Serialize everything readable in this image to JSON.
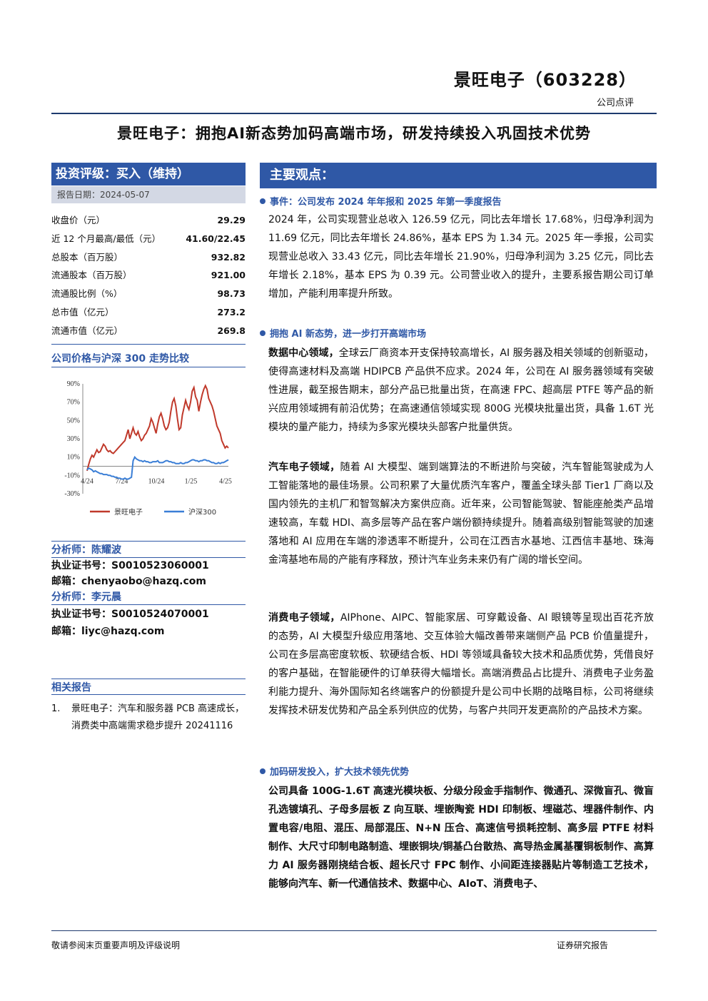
{
  "header": {
    "company_code": "景旺电子（603228）",
    "report_type": "公司点评",
    "headline": "景旺电子：拥抱AI新态势加码高端市场，研发持续投入巩固技术优势"
  },
  "sidebar": {
    "rating": "投资评级：买入（维持）",
    "report_date": "报告日期：2024-05-07",
    "stock_rows": [
      {
        "label": "收盘价（元）",
        "value": "29.29"
      },
      {
        "label": "近 12 个月最高/最低（元）",
        "value": "41.60/22.45"
      },
      {
        "label": "总股本（百万股）",
        "value": "932.82"
      },
      {
        "label": "流通股本（百万股）",
        "value": "921.00"
      },
      {
        "label": "流通股比例（%）",
        "value": "98.73"
      },
      {
        "label": "总市值（亿元）",
        "value": "273.2"
      },
      {
        "label": "流通市值（亿元）",
        "value": "269.8"
      }
    ],
    "chart_title": "公司价格与沪深 300 走势比较",
    "analysts": [
      {
        "title": "分析师：陈耀波",
        "cert": "执业证书号：S0010523060001",
        "email": "邮箱：chenyaobo@hazq.com"
      },
      {
        "title": "分析师：李元晨",
        "cert": "执业证书号：S0010524070001",
        "email": "邮箱：liyc@hazq.com"
      }
    ],
    "related_title": "相关报告",
    "related": [
      {
        "num": "1.",
        "text": "景旺电子：汽车和服务器 PCB 高速成长，消费类中高端需求稳步提升 20241116"
      }
    ]
  },
  "chart_data": {
    "type": "line",
    "y_ticks": [
      "90%",
      "70%",
      "50%",
      "30%",
      "10%",
      "-10%",
      "-30%"
    ],
    "y_values": [
      90,
      70,
      50,
      30,
      10,
      -10,
      -30
    ],
    "ylim": [
      -30,
      90
    ],
    "x_ticks": [
      "4/24",
      "7/24",
      "10/24",
      "1/25",
      "4/25"
    ],
    "grid": false,
    "legend_position": "bottom",
    "series": [
      {
        "name": "景旺电子",
        "color": "#c0392b",
        "values": [
          -5,
          2,
          8,
          12,
          10,
          14,
          18,
          15,
          16,
          20,
          24,
          22,
          18,
          16,
          17,
          15,
          14,
          16,
          18,
          20,
          22,
          24,
          26,
          28,
          34,
          40,
          30,
          36,
          42,
          36,
          34,
          38,
          32,
          28,
          30,
          34,
          36,
          40,
          44,
          52,
          48,
          42,
          36,
          46,
          54,
          58,
          52,
          44,
          40,
          42,
          48,
          60,
          70,
          74,
          66,
          52,
          40,
          42,
          56,
          64,
          72,
          66,
          62,
          70,
          82,
          86,
          76,
          72,
          60,
          70,
          78,
          84,
          88,
          84,
          74,
          70,
          66,
          60,
          52,
          44,
          40,
          36,
          28,
          24,
          20,
          22,
          20
        ]
      },
      {
        "name": "沪深300",
        "color": "#3a7ed6",
        "values": [
          -4,
          -2,
          -3,
          -4,
          -6,
          -5,
          -6,
          -7,
          -8,
          -8,
          -9,
          -9,
          -9,
          -10,
          -10,
          -11,
          -11,
          -12,
          -12,
          -13,
          -13,
          -14,
          -14,
          -13,
          -14,
          -14,
          -13,
          -12,
          6,
          10,
          8,
          7,
          6,
          6,
          5,
          6,
          5,
          5,
          4,
          4,
          5,
          5,
          5,
          6,
          4,
          4,
          4,
          5,
          6,
          6,
          5,
          5,
          4,
          4,
          3,
          3,
          3,
          4,
          3,
          3,
          4,
          4,
          5,
          6,
          7,
          7,
          6,
          6,
          5,
          6,
          6,
          7,
          7,
          6,
          6,
          5,
          4,
          4,
          3,
          3,
          4,
          3,
          4,
          4,
          5,
          6,
          7
        ]
      }
    ]
  },
  "main": {
    "heading": "主要观点：",
    "sections": [
      {
        "title": "事件：公司发布 2024 年年报和 2025 年第一季度报告",
        "paragraphs": [
          {
            "lead": "",
            "text": "2024 年，公司实现营业总收入 126.59 亿元，同比去年增长 17.68%，归母净利润为 11.69 亿元，同比去年增长 24.86%，基本 EPS 为 1.34 元。2025 年一季报，公司实现营业总收入 33.43 亿元，同比去年增长 21.90%，归母净利润为 3.25 亿元，同比去年增长 2.18%，基本 EPS 为 0.39 元。公司营业收入的提升，主要系报告期公司订单增加，产能利用率提升所致。"
          }
        ]
      },
      {
        "title": "拥抱 AI 新态势，进一步打开高端市场",
        "paragraphs": [
          {
            "lead": "数据中心领域，",
            "text": "全球云厂商资本开支保持较高增长，AI 服务器及相关领域的创新驱动，使得高速材料及高端 HDIPCB 产品供不应求。2024 年，公司在 AI 服务器领域有突破性进展，截至报告期末，部分产品已批量出货，在高速 FPC、超高层 PTFE 等产品的新兴应用领域拥有前沿优势；在高速通信领域实现 800G 光模块批量出货，具备 1.6T 光模块的量产能力，持续为多家光模块头部客户批量供货。"
          },
          {
            "lead": "汽车电子领域，",
            "text": "随着 AI 大模型、端到端算法的不断进阶与突破，汽车智能驾驶成为人工智能落地的最佳场景。公司积累了大量优质汽车客户，覆盖全球头部 Tier1 厂商以及国内领先的主机厂和智驾解决方案供应商。近年来，公司智能驾驶、智能座舱类产品增速较高，车载 HDI、高多层等产品在客户端份额持续提升。随着高级别智能驾驶的加速落地和 AI 应用在车端的渗透率不断提升，公司在江西吉水基地、江西信丰基地、珠海金湾基地布局的产能有序释放，预计汽车业务未来仍有广阔的增长空间。"
          },
          {
            "lead": "消费电子领域，",
            "text": "AIPhone、AIPC、智能家居、可穿戴设备、AI 眼镜等呈现出百花齐放的态势，AI 大模型升级应用落地、交互体验大幅改善带来端侧产品 PCB 价值量提升，公司在多层高密度软板、软硬结合板、HDI 等领域具备较大技术和品质优势，凭借良好的客户基础，在智能硬件的订单获得大幅增长。高端消费品占比提升、消费电子业务盈利能力提升、海外国际知名终端客户的份额提升是公司中长期的战略目标，公司将继续发挥技术研发优势和产品全系列供应的优势，与客户共同开发更高阶的产品技术方案。"
          }
        ]
      },
      {
        "title": "加码研发投入，扩大技术领先优势",
        "paragraphs": [
          {
            "lead": "公司具备 100G-1.6T 高速光模块板、分级分段金手指制作、微通孔、深微盲孔、微盲孔选镀填孔、子母多层板 Z 向互联、埋嵌陶瓷 HDI 印制板、埋磁芯、埋器件制作、内置电容/电阻、混压、局部混压、N+N 压合、高速信号损耗控制、高多层 PTFE 材料制作、大尺寸印制电路制造、埋嵌铜块/铜基凸台散热、高导热金属基覆铜板制作、高算力 AI 服务器刚挠结合板、超长尺寸 FPC 制作、小间距连接器贴片等制造工艺技术，能够向汽车、新一代通信技术、数据中心、AIoT、消费电子、",
            "text": ""
          }
        ]
      }
    ]
  },
  "footer": {
    "left": "敬请参阅末页重要声明及评级说明",
    "right": "证券研究报告"
  }
}
